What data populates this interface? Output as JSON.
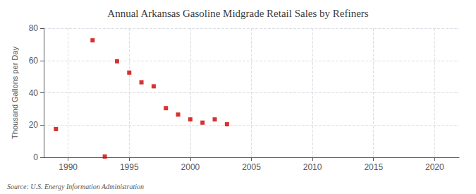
{
  "chart_data": {
    "type": "scatter",
    "title": "Annual Arkansas Gasoline Midgrade Retail Sales by Refiners",
    "ylabel": "Thousand Gallons per Day",
    "source": "Source: U.S. Energy Information Administration",
    "x": [
      1989,
      1992,
      1993,
      1994,
      1995,
      1996,
      1997,
      1998,
      1999,
      2000,
      2001,
      2002,
      2003
    ],
    "values": [
      17.5,
      72.5,
      0.5,
      59.5,
      52.5,
      46.5,
      44.0,
      30.5,
      26.5,
      23.5,
      21.5,
      23.5,
      20.5
    ],
    "color": "#cc0000",
    "marker": "square",
    "xlim": [
      1988,
      2022
    ],
    "ylim": [
      0,
      80
    ],
    "xticks": [
      1990,
      1995,
      2000,
      2005,
      2010,
      2015,
      2020
    ],
    "yticks": [
      0,
      20,
      40,
      60,
      80
    ],
    "grid": true
  }
}
